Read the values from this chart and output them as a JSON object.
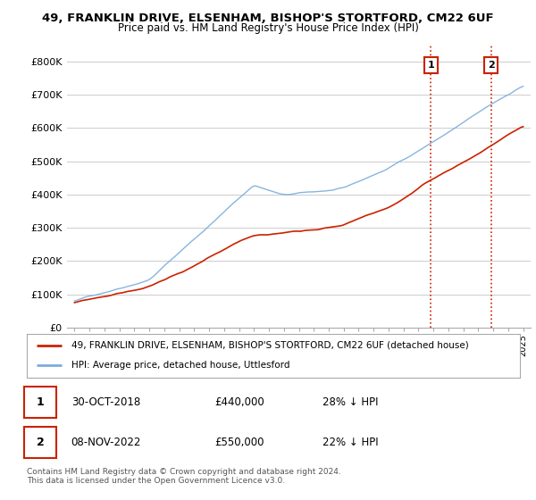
{
  "title": "49, FRANKLIN DRIVE, ELSENHAM, BISHOP'S STORTFORD, CM22 6UF",
  "subtitle": "Price paid vs. HM Land Registry's House Price Index (HPI)",
  "ylim": [
    0,
    850000
  ],
  "yticks": [
    0,
    100000,
    200000,
    300000,
    400000,
    500000,
    600000,
    700000,
    800000
  ],
  "ytick_labels": [
    "£0",
    "£100K",
    "£200K",
    "£300K",
    "£400K",
    "£500K",
    "£600K",
    "£700K",
    "£800K"
  ],
  "hpi_color": "#7aaddc",
  "price_color": "#cc2200",
  "sale1_date": "30-OCT-2018",
  "sale1_price": 440000,
  "sale1_pct": "28% ↓ HPI",
  "sale2_date": "08-NOV-2022",
  "sale2_price": 550000,
  "sale2_pct": "22% ↓ HPI",
  "legend_price_label": "49, FRANKLIN DRIVE, ELSENHAM, BISHOP'S STORTFORD, CM22 6UF (detached house)",
  "legend_hpi_label": "HPI: Average price, detached house, Uttlesford",
  "copyright_text": "Contains HM Land Registry data © Crown copyright and database right 2024.\nThis data is licensed under the Open Government Licence v3.0.",
  "background_color": "#ffffff",
  "grid_color": "#cccccc",
  "sale1_x": 2018.83,
  "sale2_x": 2022.85
}
